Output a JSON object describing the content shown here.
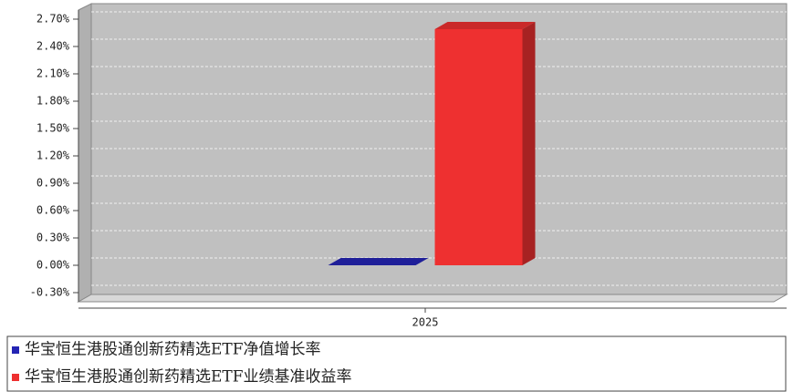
{
  "chart_data": {
    "type": "bar3d",
    "categories": [
      "2025"
    ],
    "series": [
      {
        "name": "华宝恒生港股通创新药精选ETF净值增长率",
        "color": "#2424b4",
        "values": [
          0
        ]
      },
      {
        "name": "华宝恒生港股通创新药精选ETF业绩基准收益率",
        "color": "#ee3030",
        "values": [
          2.59
        ]
      }
    ],
    "ylim": [
      -0.4,
      2.8
    ],
    "yticks": [
      {
        "value": -0.3,
        "label": "-0.30%"
      },
      {
        "value": 0,
        "label": "0.00%"
      },
      {
        "value": 0.3,
        "label": "0.30%"
      },
      {
        "value": 0.6,
        "label": "0.60%"
      },
      {
        "value": 0.9,
        "label": "0.90%"
      },
      {
        "value": 1.2,
        "label": "1.20%"
      },
      {
        "value": 1.5,
        "label": "1.50%"
      },
      {
        "value": 1.8,
        "label": "1.80%"
      },
      {
        "value": 2.1,
        "label": "2.10%"
      },
      {
        "value": 2.4,
        "label": "2.40%"
      },
      {
        "value": 2.7,
        "label": "2.70%"
      }
    ],
    "grid": true
  }
}
